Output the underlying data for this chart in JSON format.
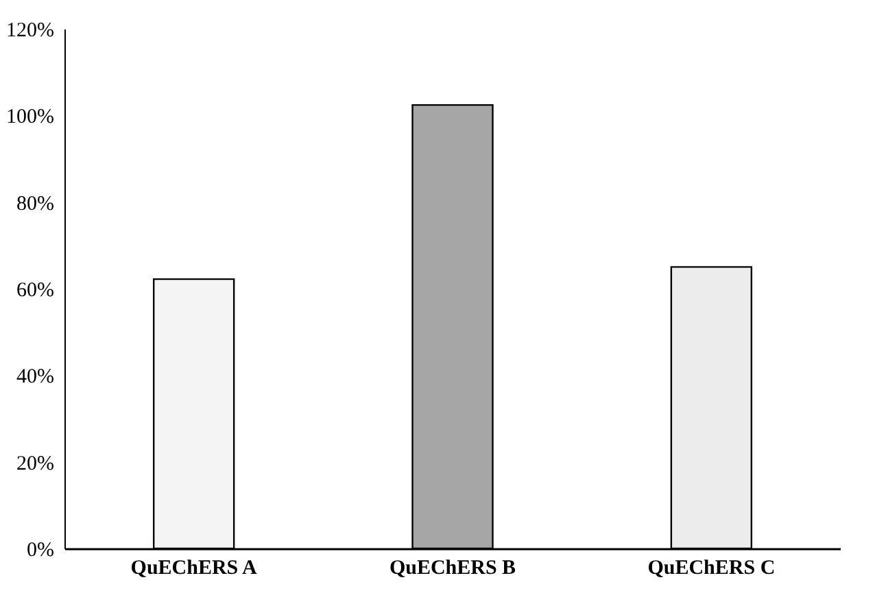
{
  "chart_data": {
    "type": "bar",
    "categories": [
      "QuEChERS A",
      "QuEChERS B",
      "QuEChERS C"
    ],
    "values": [
      62.2,
      102.4,
      65.0
    ],
    "colors": [
      "#f4f4f4",
      "#a6a6a6",
      "#ececec"
    ],
    "ylim": [
      0,
      120
    ],
    "yticks": [
      {
        "value": 0,
        "label": "0%"
      },
      {
        "value": 20,
        "label": "20%"
      },
      {
        "value": 40,
        "label": "40%"
      },
      {
        "value": 60,
        "label": "60%"
      },
      {
        "value": 80,
        "label": "80%"
      },
      {
        "value": 100,
        "label": "100%"
      },
      {
        "value": 120,
        "label": "120%"
      }
    ],
    "grid": false
  }
}
